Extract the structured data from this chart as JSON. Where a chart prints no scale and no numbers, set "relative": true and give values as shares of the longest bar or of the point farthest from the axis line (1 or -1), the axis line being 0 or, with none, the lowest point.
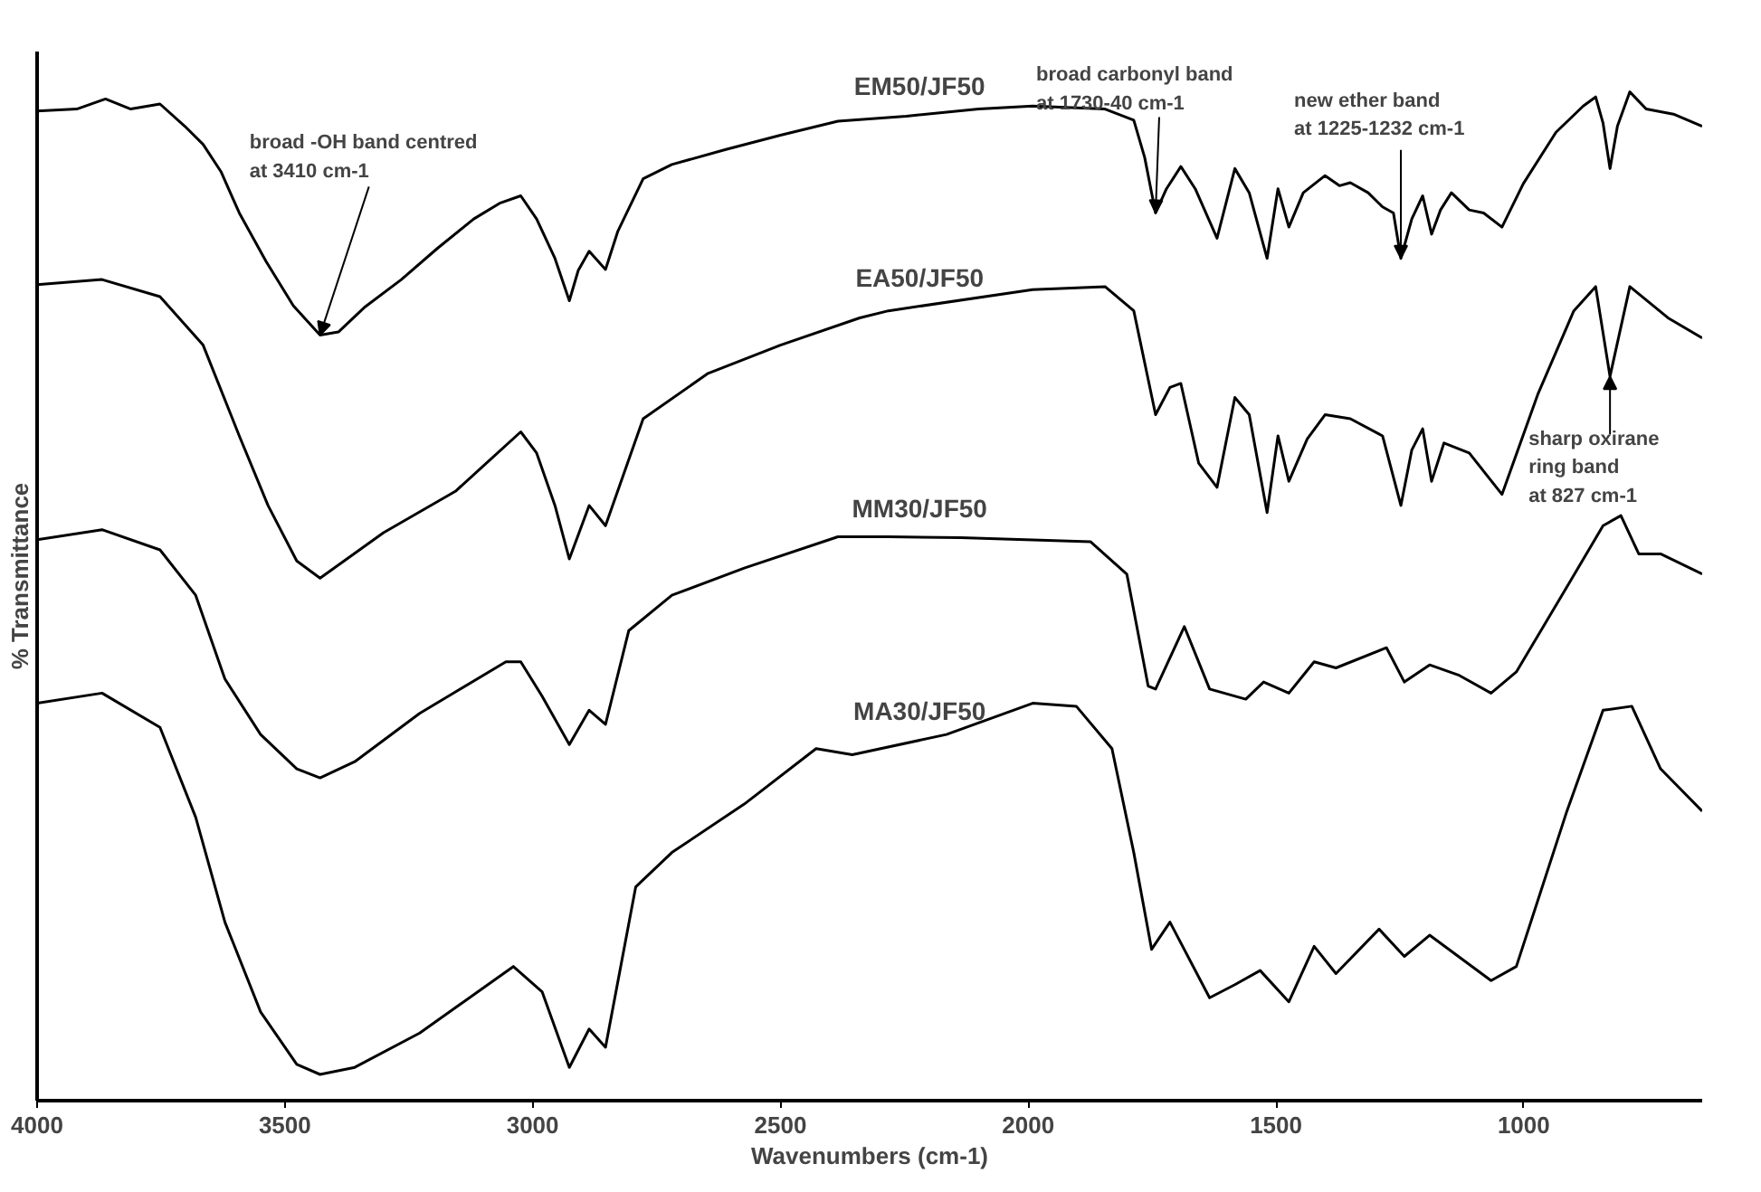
{
  "chart_data": {
    "type": "line",
    "relative": true,
    "xlabel": "Wavenumbers (cm-1)",
    "ylabel": "% Transmittance",
    "xlim": [
      4000,
      640
    ],
    "xticks": [
      4000,
      3500,
      3000,
      2500,
      2000,
      1500,
      1000
    ],
    "grid": false,
    "legend": false,
    "tick_labels": "x",
    "series": [
      {
        "name": "EM50/JF50",
        "color": "#000000",
        "x": [
          4000,
          3920,
          3862,
          3811,
          3752,
          3702,
          3665,
          3629,
          3592,
          3538,
          3483,
          3429,
          3392,
          3338,
          3265,
          3192,
          3119,
          3065,
          3024,
          2992,
          2955,
          2926,
          2908,
          2886,
          2853,
          2828,
          2777,
          2719,
          2610,
          2500,
          2384,
          2246,
          2100,
          1991,
          1845,
          1787,
          1765,
          1743,
          1721,
          1692,
          1663,
          1619,
          1583,
          1554,
          1518,
          1496,
          1474,
          1445,
          1401,
          1372,
          1350,
          1314,
          1285,
          1263,
          1248,
          1226,
          1204,
          1186,
          1168,
          1146,
          1110,
          1081,
          1044,
          1001,
          935,
          880,
          855,
          840,
          826,
          811,
          786,
          753,
          698,
          640
        ],
        "values": [
          0.981,
          0.983,
          0.993,
          0.983,
          0.988,
          0.966,
          0.948,
          0.921,
          0.88,
          0.832,
          0.788,
          0.759,
          0.762,
          0.787,
          0.814,
          0.845,
          0.874,
          0.89,
          0.897,
          0.874,
          0.835,
          0.793,
          0.823,
          0.842,
          0.824,
          0.862,
          0.914,
          0.928,
          0.943,
          0.957,
          0.971,
          0.976,
          0.983,
          0.986,
          0.983,
          0.972,
          0.935,
          0.88,
          0.904,
          0.926,
          0.904,
          0.855,
          0.924,
          0.9,
          0.835,
          0.904,
          0.866,
          0.9,
          0.917,
          0.907,
          0.91,
          0.9,
          0.886,
          0.88,
          0.835,
          0.874,
          0.897,
          0.859,
          0.883,
          0.9,
          0.883,
          0.88,
          0.866,
          0.909,
          0.96,
          0.986,
          0.995,
          0.969,
          0.924,
          0.966,
          1.0,
          0.983,
          0.978,
          0.966
        ]
      },
      {
        "name": "EA50/JF50",
        "color": "#000000",
        "x": [
          4000,
          3869,
          3752,
          3665,
          3592,
          3534,
          3476,
          3429,
          3301,
          3156,
          3024,
          2992,
          2955,
          2926,
          2886,
          2853,
          2777,
          2646,
          2500,
          2340,
          2282,
          1991,
          1845,
          1787,
          1743,
          1714,
          1692,
          1656,
          1619,
          1583,
          1554,
          1518,
          1496,
          1474,
          1437,
          1401,
          1350,
          1285,
          1248,
          1226,
          1204,
          1186,
          1161,
          1110,
          1044,
          971,
          899,
          855,
          826,
          786,
          709,
          640
        ],
        "values": [
          0.809,
          0.814,
          0.797,
          0.749,
          0.659,
          0.59,
          0.535,
          0.518,
          0.563,
          0.604,
          0.663,
          0.642,
          0.59,
          0.537,
          0.59,
          0.57,
          0.676,
          0.721,
          0.749,
          0.776,
          0.783,
          0.804,
          0.807,
          0.783,
          0.68,
          0.707,
          0.711,
          0.632,
          0.608,
          0.697,
          0.68,
          0.583,
          0.659,
          0.614,
          0.656,
          0.68,
          0.676,
          0.659,
          0.59,
          0.645,
          0.666,
          0.614,
          0.652,
          0.642,
          0.601,
          0.701,
          0.783,
          0.807,
          0.718,
          0.807,
          0.776,
          0.756
        ]
      },
      {
        "name": "MM30/JF50",
        "color": "#000000",
        "x": [
          4000,
          3869,
          3752,
          3680,
          3621,
          3549,
          3476,
          3429,
          3359,
          3228,
          3054,
          3024,
          2981,
          2926,
          2886,
          2853,
          2806,
          2719,
          2573,
          2384,
          2282,
          2136,
          1874,
          1801,
          1758,
          1743,
          1685,
          1634,
          1561,
          1525,
          1474,
          1423,
          1379,
          1277,
          1241,
          1190,
          1132,
          1066,
          1015,
          906,
          840,
          804,
          768,
          724,
          640
        ],
        "values": [
          0.556,
          0.566,
          0.546,
          0.501,
          0.418,
          0.363,
          0.329,
          0.32,
          0.336,
          0.384,
          0.435,
          0.435,
          0.401,
          0.353,
          0.387,
          0.373,
          0.466,
          0.501,
          0.528,
          0.559,
          0.559,
          0.558,
          0.554,
          0.522,
          0.411,
          0.408,
          0.47,
          0.408,
          0.398,
          0.415,
          0.404,
          0.435,
          0.429,
          0.449,
          0.415,
          0.432,
          0.422,
          0.404,
          0.425,
          0.515,
          0.57,
          0.58,
          0.542,
          0.542,
          0.522
        ]
      },
      {
        "name": "MA30/JF50",
        "color": "#000000",
        "x": [
          4000,
          3869,
          3752,
          3680,
          3621,
          3549,
          3476,
          3429,
          3359,
          3228,
          3039,
          2981,
          2926,
          2886,
          2853,
          2792,
          2719,
          2573,
          2428,
          2355,
          2165,
          1991,
          1903,
          1831,
          1787,
          1751,
          1714,
          1634,
          1583,
          1532,
          1474,
          1423,
          1379,
          1292,
          1241,
          1190,
          1066,
          1015,
          913,
          840,
          782,
          724,
          640
        ],
        "values": [
          0.394,
          0.404,
          0.37,
          0.281,
          0.177,
          0.088,
          0.036,
          0.026,
          0.033,
          0.067,
          0.133,
          0.108,
          0.033,
          0.071,
          0.053,
          0.212,
          0.246,
          0.294,
          0.349,
          0.343,
          0.363,
          0.394,
          0.391,
          0.349,
          0.246,
          0.15,
          0.177,
          0.102,
          0.115,
          0.129,
          0.098,
          0.153,
          0.126,
          0.17,
          0.143,
          0.164,
          0.119,
          0.133,
          0.287,
          0.387,
          0.391,
          0.329,
          0.287
        ]
      }
    ],
    "annotations": [
      {
        "text": "broad -OH band centred\nat 3410 cm-1",
        "x": 3429,
        "y": 0.759
      },
      {
        "text": "broad carbonyl band\nat 1730-40 cm-1",
        "x": 1743,
        "y": 0.88
      },
      {
        "text": "new ether band\nat 1225-1232 cm-1",
        "x": 1248,
        "y": 0.835
      },
      {
        "text": "sharp oxirane\nring band\nat 827 cm-1",
        "x": 826,
        "y": 0.718
      }
    ]
  }
}
